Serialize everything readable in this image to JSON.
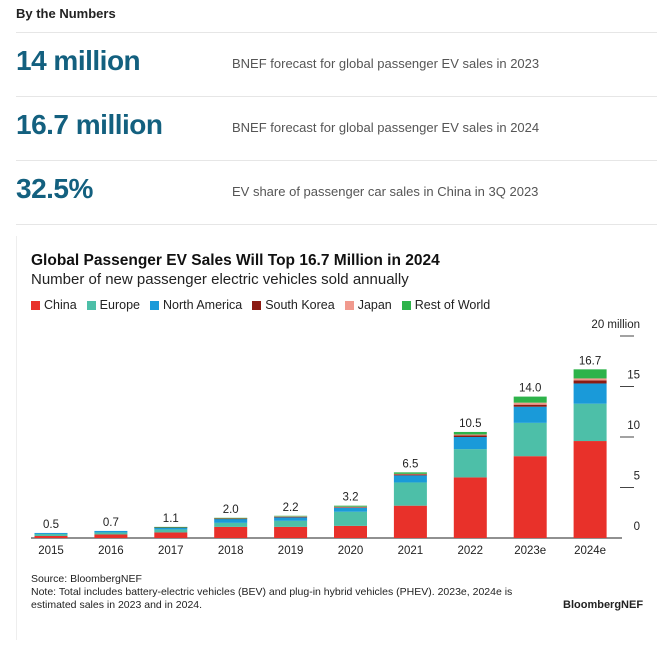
{
  "section_title": "By the Numbers",
  "stats": [
    {
      "value": "14 million",
      "description": "BNEF forecast for global passenger EV sales in 2023"
    },
    {
      "value": "16.7 million",
      "description": "BNEF forecast for global passenger EV sales in 2024"
    },
    {
      "value": "32.5%",
      "description": "EV share of passenger car sales in China in 3Q 2023"
    }
  ],
  "chart_data": {
    "type": "bar",
    "stacked": true,
    "title": "Global Passenger EV Sales Will Top 16.7 Million in 2024",
    "subtitle": "Number of new passenger electric vehicles sold annually",
    "categories": [
      "2015",
      "2016",
      "2017",
      "2018",
      "2019",
      "2020",
      "2021",
      "2022",
      "2023e",
      "2024e"
    ],
    "totals": [
      "0.5",
      "0.7",
      "1.1",
      "2.0",
      "2.2",
      "3.2",
      "6.5",
      "10.5",
      "14.0",
      "16.7"
    ],
    "series": [
      {
        "name": "China",
        "color": "#e8312a",
        "values": [
          0.2,
          0.35,
          0.55,
          1.1,
          1.1,
          1.2,
          3.2,
          6.0,
          8.1,
          9.6
        ]
      },
      {
        "name": "Europe",
        "color": "#4dbfa8",
        "values": [
          0.2,
          0.2,
          0.3,
          0.4,
          0.6,
          1.4,
          2.3,
          2.8,
          3.3,
          3.7
        ]
      },
      {
        "name": "North America",
        "color": "#1a9ad9",
        "values": [
          0.1,
          0.15,
          0.2,
          0.4,
          0.35,
          0.4,
          0.7,
          1.2,
          1.6,
          2.0
        ]
      },
      {
        "name": "South Korea",
        "color": "#8b1a12",
        "values": [
          0,
          0,
          0.02,
          0.03,
          0.05,
          0.05,
          0.1,
          0.15,
          0.2,
          0.3
        ]
      },
      {
        "name": "Japan",
        "color": "#f19a8e",
        "values": [
          0,
          0,
          0.02,
          0.04,
          0.05,
          0.05,
          0.05,
          0.1,
          0.2,
          0.2
        ]
      },
      {
        "name": "Rest of World",
        "color": "#2db34a",
        "values": [
          0,
          0,
          0.01,
          0.03,
          0.05,
          0.1,
          0.15,
          0.25,
          0.6,
          0.9
        ]
      }
    ],
    "ylim": [
      0,
      20
    ],
    "yticks": [
      "0",
      "5",
      "10",
      "15",
      "20 million"
    ],
    "ytick_values": [
      0,
      5,
      10,
      15,
      20
    ],
    "legend": "top-left",
    "grid": false
  },
  "footer": {
    "source": "Source: BloombergNEF",
    "note": "Note: Total includes battery-electric vehicles (BEV) and plug-in hybrid vehicles (PHEV). 2023e, 2024e is estimated sales in 2023 and in 2024.",
    "brand": "BloombergNEF"
  }
}
